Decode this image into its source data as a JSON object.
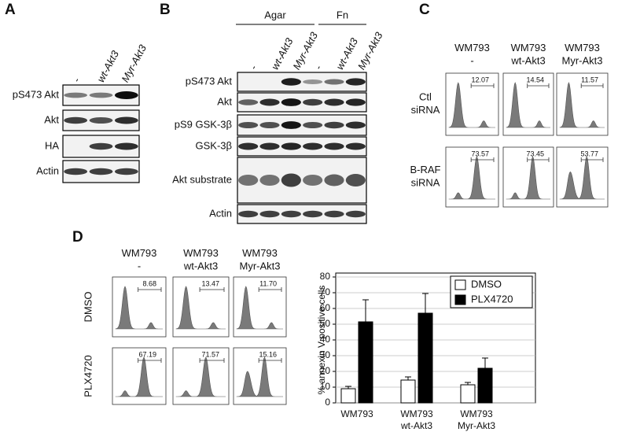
{
  "panels": {
    "A": {
      "label": "A",
      "columns": [
        "-",
        "wt-Akt3",
        "Myr-Akt3"
      ],
      "rows": [
        "pS473 Akt",
        "Akt",
        "HA",
        "Actin"
      ]
    },
    "B": {
      "label": "B",
      "groups": [
        "Agar",
        "Fn"
      ],
      "columns": [
        "-",
        "wt-Akt3",
        "Myr-Akt3",
        "-",
        "wt-Akt3",
        "Myr-Akt3"
      ],
      "rows": [
        "pS473 Akt",
        "Akt",
        "pS9 GSK-3β",
        "GSK-3β",
        "Akt substrate",
        "Actin"
      ]
    },
    "C": {
      "label": "C",
      "columns": [
        "WM793\n-",
        "WM793\nwt-Akt3",
        "WM793\nMyr-Akt3"
      ],
      "rows": [
        "Ctl\nsiRNA",
        "B-RAF\nsiRNA"
      ],
      "gate_values": [
        [
          "12.07",
          "14.54",
          "11.57"
        ],
        [
          "73.57",
          "73.45",
          "53.77"
        ]
      ]
    },
    "D": {
      "label": "D",
      "columns": [
        "WM793\n-",
        "WM793\nwt-Akt3",
        "WM793\nMyr-Akt3"
      ],
      "rows": [
        "DMSO",
        "PLX4720"
      ],
      "gate_values": [
        [
          "8.68",
          "13.47",
          "11.70"
        ],
        [
          "67.19",
          "71.57",
          "15.16"
        ]
      ]
    }
  },
  "chart_data": {
    "type": "bar",
    "y_label": "% annexin V positive cells",
    "categories": [
      "WM793",
      "WM793\nwt-Akt3",
      "WM793\nMyr-Akt3"
    ],
    "series": [
      {
        "name": "DMSO",
        "color": "#ffffff",
        "values": [
          9,
          14.5,
          11.5
        ],
        "errors": [
          1.5,
          2,
          1.5
        ]
      },
      {
        "name": "PLX4720",
        "color": "#000000",
        "values": [
          51.5,
          57,
          22
        ],
        "errors": [
          14,
          12.5,
          6.5
        ]
      }
    ],
    "ylim": [
      0,
      80
    ],
    "yticks": [
      0,
      10,
      20,
      30,
      40,
      50,
      60,
      70,
      80
    ],
    "legend": "top-right"
  }
}
